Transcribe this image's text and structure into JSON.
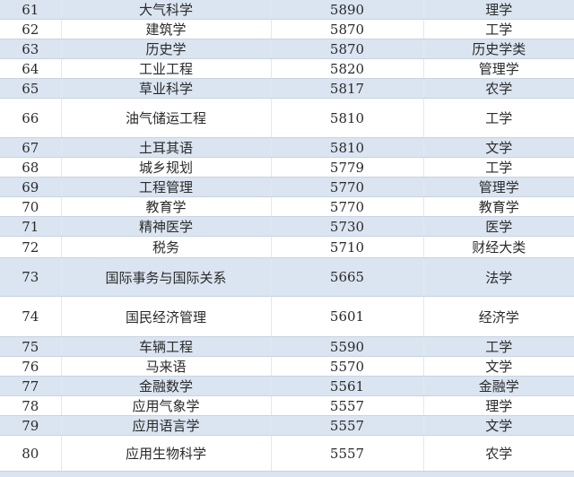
{
  "table": {
    "rows": [
      {
        "rank": "61",
        "major": "大气科学",
        "salary": "5890",
        "category": "理学"
      },
      {
        "rank": "62",
        "major": "建筑学",
        "salary": "5870",
        "category": "工学"
      },
      {
        "rank": "63",
        "major": "历史学",
        "salary": "5870",
        "category": "历史学类"
      },
      {
        "rank": "64",
        "major": "工业工程",
        "salary": "5820",
        "category": "管理学"
      },
      {
        "rank": "65",
        "major": "草业科学",
        "salary": "5817",
        "category": "农学"
      },
      {
        "rank": "66",
        "major": "油气储运工程",
        "salary": "5810",
        "category": "工学"
      },
      {
        "rank": "67",
        "major": "土耳其语",
        "salary": "5810",
        "category": "文学"
      },
      {
        "rank": "68",
        "major": "城乡规划",
        "salary": "5779",
        "category": "工学"
      },
      {
        "rank": "69",
        "major": "工程管理",
        "salary": "5770",
        "category": "管理学"
      },
      {
        "rank": "70",
        "major": "教育学",
        "salary": "5770",
        "category": "教育学"
      },
      {
        "rank": "71",
        "major": "精神医学",
        "salary": "5730",
        "category": "医学"
      },
      {
        "rank": "72",
        "major": "税务",
        "salary": "5710",
        "category": "财经大类"
      },
      {
        "rank": "73",
        "major": "国际事务与国际关系",
        "salary": "5665",
        "category": "法学"
      },
      {
        "rank": "74",
        "major": "国民经济管理",
        "salary": "5601",
        "category": "经济学"
      },
      {
        "rank": "75",
        "major": "车辆工程",
        "salary": "5590",
        "category": "工学"
      },
      {
        "rank": "76",
        "major": "马来语",
        "salary": "5570",
        "category": "文学"
      },
      {
        "rank": "77",
        "major": "金融数学",
        "salary": "5561",
        "category": "金融学"
      },
      {
        "rank": "78",
        "major": "应用气象学",
        "salary": "5557",
        "category": "理学"
      },
      {
        "rank": "79",
        "major": "应用语言学",
        "salary": "5557",
        "category": "文学"
      },
      {
        "rank": "80",
        "major": "应用生物科学",
        "salary": "5557",
        "category": "农学"
      }
    ]
  },
  "colors": {
    "band": "#dbe5f1",
    "white": "#ffffff",
    "text": "#2a2a2a"
  }
}
